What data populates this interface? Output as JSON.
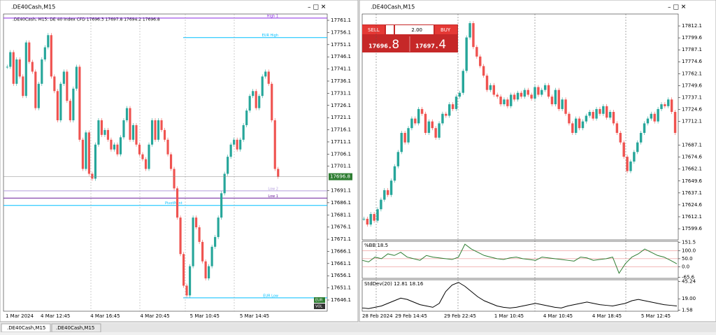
{
  "left_window": {
    "title": ".DE40Cash,M15",
    "header": ".DE40Cash, M15:  DE 40 Index CFD  17696.3 17697.8 17694.2 17696.8",
    "ylim": [
      17641.5,
      17763.7
    ],
    "yticks": [
      17761.1,
      17756.1,
      17751.1,
      17746.1,
      17741.1,
      17736.1,
      17731.1,
      17726.1,
      17721.1,
      17716.1,
      17711.1,
      17706.1,
      17701.1,
      17691.1,
      17686.1,
      17681.1,
      17676.1,
      17671.1,
      17666.1,
      17661.1,
      17656.1,
      17651.1,
      17646.1
    ],
    "current_price": 17696.8,
    "xlabels": [
      "1 Mar 2024",
      "4 Mar 12:45",
      "4 Mar 16:45",
      "4 Mar 20:45",
      "5 Mar 10:45",
      "5 Mar 14:45"
    ],
    "levels": [
      {
        "label": "High 1",
        "price": 17762,
        "color": "#8a2be2"
      },
      {
        "label": "EUR High",
        "price": 17754,
        "color": "#00bfff"
      },
      {
        "label": "Low 2",
        "price": 17691,
        "color": "#b39ddb"
      },
      {
        "label": "Low 1",
        "price": 17688,
        "color": "#6a1b9a"
      },
      {
        "label": "PivotPoint",
        "price": 17685,
        "color": "#00bfff"
      },
      {
        "label": "EUR Low",
        "price": 17647,
        "color": "#00bfff"
      }
    ],
    "badges": [
      "EUR",
      "VOL"
    ],
    "closes": [
      17742,
      17748,
      17735,
      17745,
      17738,
      17730,
      17752,
      17744,
      17740,
      17725,
      17735,
      17745,
      17750,
      17755,
      17738,
      17732,
      17720,
      17735,
      17740,
      17728,
      17720,
      17733,
      17742,
      17712,
      17700,
      17715,
      17698,
      17696,
      17710,
      17720,
      17714,
      17716,
      17712,
      17708,
      17710,
      17706,
      17713,
      17720,
      17725,
      17712,
      17718,
      17710,
      17706,
      17704,
      17700,
      17710,
      17720,
      17712,
      17720,
      17716,
      17712,
      17706,
      17700,
      17692,
      17680,
      17665,
      17652,
      17648,
      17660,
      17680,
      17676,
      17670,
      17662,
      17655,
      17660,
      17668,
      17672,
      17680,
      17690,
      17698,
      17705,
      17710,
      17712,
      17708,
      17712,
      17718,
      17724,
      17730,
      17732,
      17725,
      17730,
      17738,
      17740,
      17735,
      17720,
      17700,
      17696.8
    ]
  },
  "right_window": {
    "title": ".DE40Cash,M15",
    "trade": {
      "sell": "SELL",
      "lot": "2.00",
      "buy": "BUY",
      "bid_big": "17696",
      "bid_small": ".8",
      "ask_big": "17697",
      "ask_small": ".4"
    },
    "ylim": [
      17587.9,
      17824.6
    ],
    "yticks": [
      17812.1,
      17799.6,
      17787.1,
      17774.6,
      17762.1,
      17749.6,
      17737.1,
      17724.6,
      17712.1,
      17687.1,
      17674.6,
      17662.1,
      17649.6,
      17637.1,
      17624.6,
      17612.1,
      17599.6
    ],
    "xlabels": [
      "28 Feb 2024",
      "29 Feb 14:45",
      "29 Feb 22:45",
      "1 Mar 10:45",
      "4 Mar 10:45",
      "4 Mar 18:45",
      "5 Mar 12:45"
    ],
    "closes": [
      17610,
      17604,
      17615,
      17608,
      17620,
      17630,
      17640,
      17635,
      17650,
      17665,
      17680,
      17700,
      17690,
      17705,
      17715,
      17710,
      17725,
      17720,
      17700,
      17712,
      17705,
      17695,
      17710,
      17720,
      17718,
      17730,
      17725,
      17738,
      17742,
      17765,
      17800,
      17815,
      17790,
      17780,
      17770,
      17760,
      17745,
      17750,
      17740,
      17738,
      17730,
      17735,
      17728,
      17740,
      17735,
      17742,
      17738,
      17745,
      17740,
      17736,
      17748,
      17740,
      17745,
      17750,
      17738,
      17730,
      17745,
      17725,
      17735,
      17720,
      17710,
      17700,
      17715,
      17705,
      17712,
      17718,
      17722,
      17715,
      17725,
      17720,
      17728,
      17716,
      17722,
      17710,
      17700,
      17690,
      17675,
      17660,
      17670,
      17680,
      17690,
      17700,
      17710,
      17715,
      17720,
      17712,
      17725,
      17730,
      17728,
      17735,
      17722,
      17700
    ],
    "bb": {
      "label": "%BB 18.5",
      "ylim": [
        -72,
        158
      ],
      "yticks": [
        151.5,
        {
          "value": 100,
          "label": "100.0"
        },
        {
          "value": 50,
          "label": "50.0"
        },
        {
          "value": 0,
          "label": "0.0"
        },
        -65.6
      ],
      "values": [
        40,
        30,
        60,
        50,
        80,
        70,
        90,
        60,
        50,
        40,
        70,
        60,
        55,
        50,
        45,
        60,
        140,
        110,
        90,
        70,
        60,
        50,
        45,
        55,
        60,
        50,
        45,
        40,
        60,
        55,
        50,
        45,
        40,
        35,
        60,
        55,
        40,
        45,
        50,
        60,
        -40,
        20,
        60,
        80,
        110,
        90,
        70,
        60,
        40,
        18.5
      ]
    },
    "sd": {
      "label": "StdDev(20) 12.81 18.16",
      "ylim": [
        0,
        48
      ],
      "yticks": [
        45.24,
        {
          "value": 19,
          "label": "19.00"
        },
        1.58
      ],
      "values": [
        5,
        4,
        6,
        8,
        12,
        16,
        20,
        18,
        14,
        10,
        8,
        6,
        12,
        30,
        40,
        44,
        38,
        30,
        22,
        16,
        12,
        8,
        6,
        5,
        6,
        8,
        10,
        12,
        10,
        8,
        6,
        5,
        8,
        10,
        12,
        14,
        12,
        10,
        9,
        8,
        10,
        12,
        16,
        18,
        16,
        14,
        12,
        10,
        9,
        8
      ]
    }
  },
  "tabs": [
    ".DE40Cash,M15",
    ".DE40Cash,M15"
  ]
}
